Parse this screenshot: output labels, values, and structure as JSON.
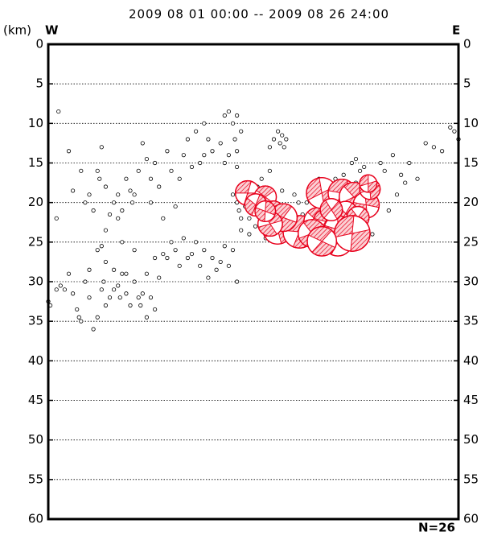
{
  "chart_data": {
    "type": "scatter",
    "title": "2009 08 01 00:00 -- 2009 08 26 24:00",
    "unit_label": "(km)",
    "left_label": "W",
    "right_label": "E",
    "count_label": "N=26",
    "ylim": [
      0,
      60
    ],
    "y_inverted": true,
    "yticks": [
      0,
      5,
      10,
      15,
      20,
      25,
      30,
      35,
      40,
      45,
      50,
      55,
      60
    ],
    "xlim": [
      0,
      100
    ],
    "grid": true,
    "color": "#000000",
    "x": [
      0,
      0.5,
      2,
      3,
      4,
      5,
      6,
      7,
      7.5,
      8,
      9,
      10,
      11,
      12,
      13,
      13.5,
      14,
      15,
      16,
      17,
      17.5,
      18,
      19,
      20,
      21,
      22,
      22.5,
      23,
      24,
      25,
      26,
      27,
      12,
      14,
      16,
      18,
      19,
      21,
      10,
      13,
      24,
      26,
      2,
      8,
      9,
      10,
      11,
      12,
      12.5,
      13,
      14,
      15,
      16,
      17,
      18,
      19,
      20,
      20.5,
      21,
      22,
      23,
      24,
      25,
      26,
      27,
      28,
      29,
      30,
      31,
      32,
      33,
      34,
      35,
      36,
      37,
      38,
      39,
      40,
      14,
      17,
      5,
      6,
      25,
      28,
      29,
      30,
      31,
      32,
      33,
      34,
      35,
      36,
      37,
      38,
      39,
      40,
      41,
      42,
      43,
      44,
      46,
      47,
      45,
      2.5,
      38,
      43,
      44,
      45,
      45.5,
      46,
      44,
      47,
      43,
      46,
      42,
      46,
      45,
      46,
      46.5,
      47,
      48,
      48.5,
      49,
      50,
      50.5,
      51,
      52,
      53,
      54,
      55,
      56,
      57,
      58,
      59,
      60,
      61,
      62,
      63,
      63.5,
      64,
      65,
      66,
      67,
      68,
      69,
      70,
      72,
      73,
      75,
      76,
      77,
      78,
      79,
      80,
      49,
      53,
      60,
      62,
      55,
      56,
      56.5,
      57,
      57.5,
      58,
      54,
      74,
      75,
      76,
      77,
      78,
      80,
      81,
      82,
      84,
      86,
      87,
      88,
      90,
      92,
      94,
      96,
      98,
      99,
      100,
      85,
      83,
      80
    ],
    "values": [
      32.5,
      33,
      31,
      30.5,
      31,
      29,
      31.5,
      33.5,
      34.5,
      35,
      30,
      32,
      36,
      34.5,
      31,
      30,
      33,
      32,
      31,
      30.5,
      32,
      29,
      31.5,
      33,
      30,
      32,
      33,
      31.5,
      34.5,
      32,
      33.5,
      29.5,
      26,
      27.5,
      28.5,
      25,
      29,
      26,
      28.5,
      25.5,
      29,
      27,
      22,
      16,
      20,
      19,
      21,
      16,
      17,
      13,
      18,
      21.5,
      20,
      19,
      21,
      17,
      18.5,
      20,
      19,
      16,
      12.5,
      14.5,
      17,
      15,
      18,
      22,
      13.5,
      16,
      20.5,
      17,
      14,
      12,
      15.5,
      11,
      15,
      14,
      12,
      13.5,
      23.5,
      22,
      13.5,
      18.5,
      20,
      26.5,
      27,
      25,
      26,
      28,
      24.5,
      27,
      26.5,
      25,
      28,
      26,
      29.5,
      27,
      28.5,
      27.5,
      25.5,
      28,
      30,
      23.5,
      26,
      8.5,
      10,
      9,
      8.5,
      10,
      12,
      13.5,
      14,
      11,
      15,
      15.5,
      12.5,
      9,
      19,
      20,
      21,
      22,
      20.5,
      19.5,
      22,
      21,
      23,
      18,
      17,
      20,
      16,
      19,
      24,
      18.5,
      20.5,
      21,
      19,
      20,
      21.5,
      20,
      19,
      22,
      21,
      17,
      20,
      22,
      21.5,
      17,
      16.5,
      18,
      17.5,
      22,
      23,
      21,
      24,
      19,
      24,
      24.5,
      23.5,
      24,
      12,
      11,
      12.5,
      11.5,
      13,
      12,
      13,
      15,
      14.5,
      16,
      15.5,
      17,
      18.5,
      15,
      16,
      14,
      16.5,
      17.5,
      15,
      17,
      12.5,
      13,
      13.5,
      10.5,
      11,
      12,
      19,
      21,
      21
    ],
    "mechanisms": {
      "color": "#e8001c",
      "x": [
        48.6,
        52.9,
        54.9,
        50.6,
        55.9,
        61.2,
        65.7,
        68.6,
        70.6,
        66.7,
        71.6,
        74.5,
        77.5,
        72.5,
        78.4,
        67.6,
        64.3,
        70.6,
        75.5,
        78.0,
        57.3,
        54.1,
        52.9,
        69.0,
        74.1,
        66.7
      ],
      "values": [
        18.8,
        19.3,
        21.1,
        20.3,
        23.4,
        23.7,
        22.4,
        24.4,
        24.9,
        18.8,
        18.8,
        19.3,
        20.3,
        21.4,
        18.3,
        22.4,
        23.9,
        23.4,
        21.9,
        17.6,
        21.9,
        22.7,
        21.1,
        20.9,
        23.9,
        24.9
      ],
      "sizes": [
        3.1,
        2.8,
        2.6,
        2.8,
        3.7,
        4.1,
        3.5,
        4.1,
        3.7,
        3.9,
        3.5,
        3.7,
        3.3,
        3.1,
        2.6,
        3.1,
        3.5,
        3.5,
        2.8,
        2.2,
        3.5,
        3.1,
        2.6,
        2.8,
        4.5,
        3.7
      ]
    }
  }
}
